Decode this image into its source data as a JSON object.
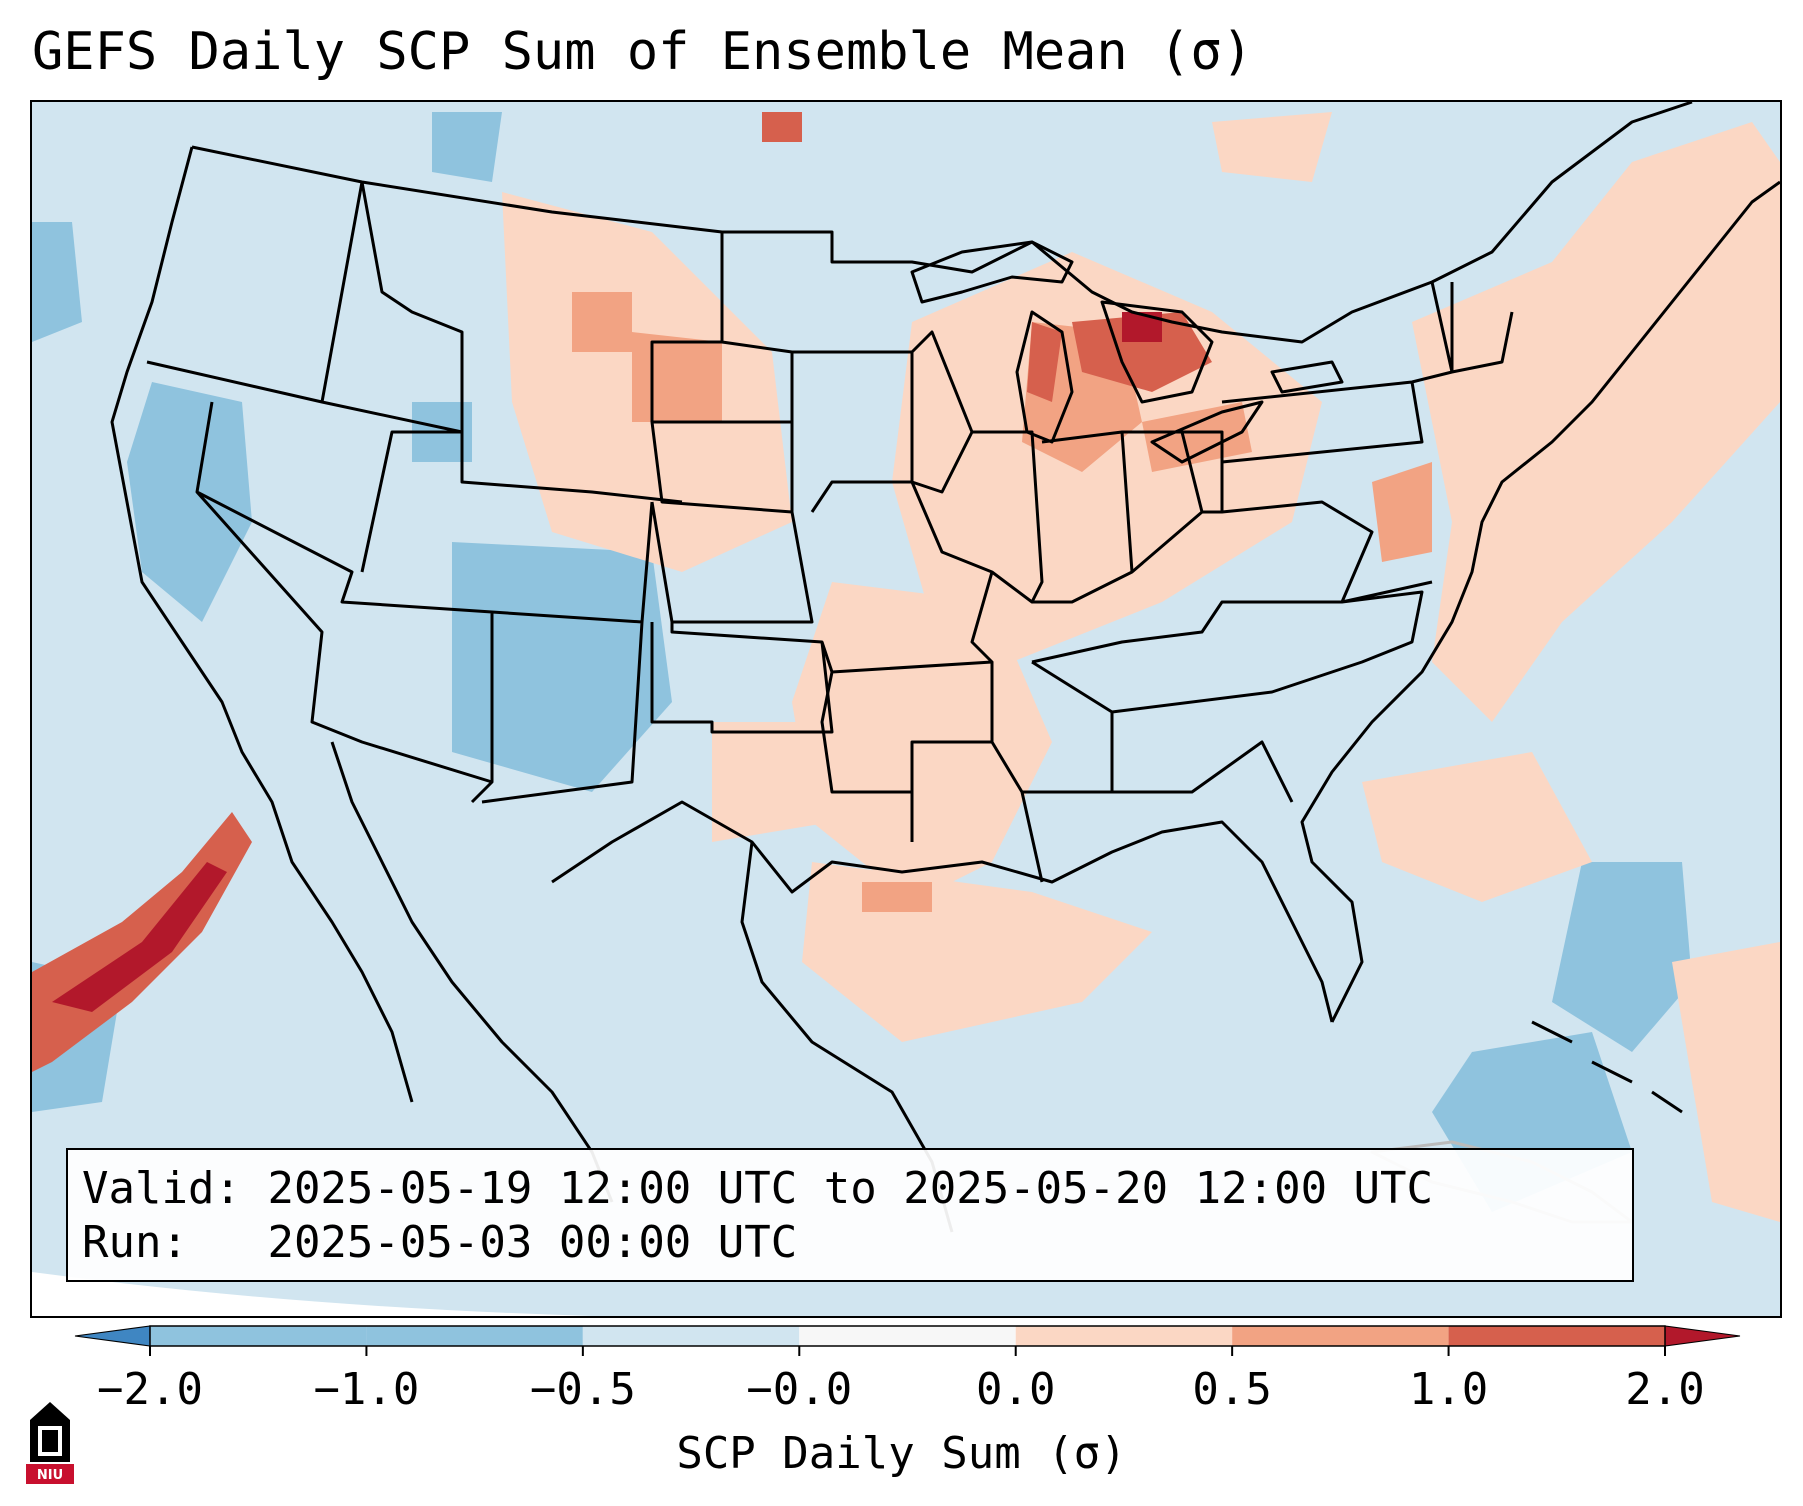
{
  "title": "GEFS Daily SCP Sum of Ensemble Mean (σ)",
  "info": {
    "valid_label": "Valid:",
    "valid_value": "2025-05-19 12:00 UTC to 2025-05-20 12:00 UTC",
    "run_label": "Run:",
    "run_value": "2025-05-03 00:00 UTC"
  },
  "colorbar": {
    "label": "SCP Daily Sum (σ)",
    "ticks": [
      "−2.0",
      "−1.0",
      "−0.5",
      "−0.0",
      "0.0",
      "0.5",
      "1.0",
      "2.0"
    ],
    "colors": [
      "#3f86c2",
      "#8fc3de",
      "#d1e5f0",
      "#f7f7f7",
      "#fbd7c4",
      "#f2a383",
      "#d6604d",
      "#b2182b"
    ],
    "extend": "both"
  },
  "map": {
    "region": "CONUS",
    "colors": {
      "background": "#d1e5f0",
      "light_blue": "#8fc3de",
      "light_red": "#fbd7c4",
      "mid_red": "#f2a383",
      "red": "#d6604d",
      "dark_red": "#b2182b",
      "borders": "#000000"
    }
  },
  "logo": {
    "text": "NIU",
    "icon": "niu-logo-icon",
    "color": "#c8102e"
  }
}
